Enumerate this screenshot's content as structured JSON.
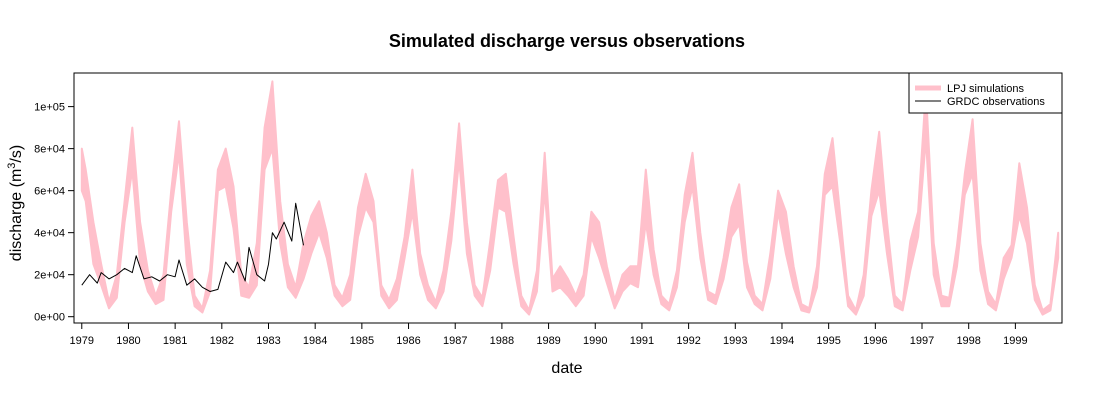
{
  "chart_data": {
    "type": "line",
    "title": "Simulated discharge versus observations",
    "xlabel": "date",
    "ylabel_main": "discharge (m",
    "ylabel_sup": "3",
    "ylabel_tail": "/s)",
    "x_axis": {
      "kind": "date",
      "range": [
        "1978-11-01",
        "1999-12-31"
      ],
      "ticks": [
        "1979",
        "1980",
        "1981",
        "1982",
        "1983",
        "1984",
        "1985",
        "1986",
        "1987",
        "1988",
        "1989",
        "1990",
        "1991",
        "1992",
        "1993",
        "1994",
        "1995",
        "1996",
        "1997",
        "1998",
        "1999"
      ]
    },
    "y_axis": {
      "range": [
        -3000,
        116000
      ],
      "ticks": [
        0,
        20000,
        40000,
        60000,
        80000,
        100000
      ],
      "tick_labels": [
        "0e+00",
        "2e+04",
        "4e+04",
        "6e+04",
        "8e+04",
        "1e+05"
      ]
    },
    "legend": {
      "placement": "top-right",
      "entries": [
        {
          "label": "LPJ simulations",
          "color": "#ffc0cb",
          "style": "thick-line"
        },
        {
          "label": "GRDC observations",
          "color": "#000000",
          "style": "thin-line"
        }
      ]
    },
    "series": [
      {
        "name": "LPJ simulations",
        "type": "band",
        "color": "#ffc0cb",
        "x": [
          "1979-01",
          "1979-02",
          "1979-04",
          "1979-06",
          "1979-08",
          "1979-10",
          "1979-12",
          "1980-02",
          "1980-04",
          "1980-06",
          "1980-08",
          "1980-10",
          "1980-12",
          "1981-02",
          "1981-04",
          "1981-06",
          "1981-08",
          "1981-10",
          "1981-12",
          "1982-02",
          "1982-04",
          "1982-06",
          "1982-08",
          "1982-10",
          "1982-12",
          "1983-02",
          "1983-04",
          "1983-06",
          "1983-08",
          "1983-10",
          "1983-12",
          "1984-02",
          "1984-04",
          "1984-06",
          "1984-08",
          "1984-10",
          "1984-12",
          "1985-02",
          "1985-04",
          "1985-06",
          "1985-08",
          "1985-10",
          "1985-12",
          "1986-02",
          "1986-04",
          "1986-06",
          "1986-08",
          "1986-10",
          "1986-12",
          "1987-02",
          "1987-04",
          "1987-06",
          "1987-08",
          "1987-10",
          "1987-12",
          "1988-02",
          "1988-04",
          "1988-06",
          "1988-08",
          "1988-10",
          "1988-12",
          "1989-02",
          "1989-04",
          "1989-06",
          "1989-08",
          "1989-10",
          "1989-12",
          "1990-02",
          "1990-04",
          "1990-06",
          "1990-08",
          "1990-10",
          "1990-12",
          "1991-02",
          "1991-04",
          "1991-06",
          "1991-08",
          "1991-10",
          "1991-12",
          "1992-02",
          "1992-04",
          "1992-06",
          "1992-08",
          "1992-10",
          "1992-12",
          "1993-02",
          "1993-04",
          "1993-06",
          "1993-08",
          "1993-10",
          "1993-12",
          "1994-02",
          "1994-04",
          "1994-06",
          "1994-08",
          "1994-10",
          "1994-12",
          "1995-02",
          "1995-04",
          "1995-06",
          "1995-08",
          "1995-10",
          "1995-12",
          "1996-02",
          "1996-04",
          "1996-06",
          "1996-08",
          "1996-10",
          "1996-12",
          "1997-02",
          "1997-04",
          "1997-06",
          "1997-08",
          "1997-10",
          "1997-12",
          "1998-02",
          "1998-04",
          "1998-06",
          "1998-08",
          "1998-10",
          "1998-12",
          "1999-02",
          "1999-04",
          "1999-06",
          "1999-08",
          "1999-10",
          "1999-12"
        ],
        "lower": [
          60000,
          55000,
          25000,
          15000,
          4000,
          9000,
          45000,
          70000,
          25000,
          12000,
          6000,
          8000,
          50000,
          78000,
          25000,
          5000,
          2000,
          12000,
          60000,
          62000,
          42000,
          10000,
          9000,
          15000,
          70000,
          80000,
          35000,
          14000,
          9000,
          18000,
          30000,
          40000,
          28000,
          10000,
          5000,
          8000,
          38000,
          52000,
          45000,
          10000,
          4000,
          8000,
          28000,
          50000,
          20000,
          8000,
          4000,
          12000,
          36000,
          75000,
          30000,
          10000,
          5000,
          22000,
          52000,
          50000,
          25000,
          5000,
          1000,
          12000,
          60000,
          12000,
          14000,
          10000,
          5000,
          10000,
          38000,
          28000,
          16000,
          4000,
          12000,
          16000,
          14000,
          45000,
          20000,
          6000,
          3000,
          14000,
          45000,
          62000,
          28000,
          8000,
          6000,
          18000,
          38000,
          44000,
          14000,
          6000,
          3000,
          18000,
          50000,
          30000,
          14000,
          3000,
          2000,
          14000,
          58000,
          62000,
          35000,
          5000,
          1000,
          10000,
          48000,
          60000,
          30000,
          5000,
          3000,
          22000,
          38000,
          85000,
          20000,
          5000,
          5000,
          24000,
          58000,
          68000,
          22000,
          6000,
          3000,
          18000,
          28000,
          48000,
          35000,
          8000,
          1000,
          3000,
          28000
        ],
        "upper": [
          80000,
          70000,
          45000,
          25000,
          7000,
          20000,
          55000,
          90000,
          45000,
          22000,
          10000,
          20000,
          60000,
          93000,
          45000,
          10000,
          4000,
          22000,
          70000,
          80000,
          62000,
          20000,
          14000,
          35000,
          90000,
          112000,
          55000,
          25000,
          14000,
          35000,
          48000,
          55000,
          40000,
          15000,
          9000,
          20000,
          52000,
          68000,
          55000,
          15000,
          8000,
          18000,
          38000,
          70000,
          30000,
          15000,
          7000,
          22000,
          50000,
          92000,
          45000,
          15000,
          9000,
          36000,
          65000,
          68000,
          38000,
          10000,
          3000,
          22000,
          78000,
          18000,
          24000,
          18000,
          10000,
          20000,
          50000,
          45000,
          24000,
          8000,
          20000,
          24000,
          24000,
          70000,
          32000,
          10000,
          6000,
          22000,
          58000,
          78000,
          40000,
          12000,
          10000,
          28000,
          52000,
          63000,
          26000,
          10000,
          6000,
          30000,
          60000,
          50000,
          24000,
          6000,
          4000,
          24000,
          68000,
          85000,
          48000,
          10000,
          3000,
          20000,
          60000,
          88000,
          45000,
          10000,
          6000,
          36000,
          50000,
          108000,
          35000,
          10000,
          9000,
          34000,
          68000,
          94000,
          35000,
          12000,
          6000,
          28000,
          34000,
          73000,
          52000,
          15000,
          3000,
          6000,
          40000
        ]
      },
      {
        "name": "GRDC observations",
        "type": "line",
        "color": "#000000",
        "x": [
          "1979-01",
          "1979-03",
          "1979-05",
          "1979-06",
          "1979-08",
          "1979-10",
          "1979-12",
          "1980-02",
          "1980-03",
          "1980-05",
          "1980-07",
          "1980-09",
          "1980-11",
          "1981-01",
          "1981-02",
          "1981-04",
          "1981-06",
          "1981-08",
          "1981-10",
          "1981-12",
          "1982-02",
          "1982-04",
          "1982-05",
          "1982-07",
          "1982-08",
          "1982-10",
          "1982-12",
          "1983-01",
          "1983-02",
          "1983-03",
          "1983-05",
          "1983-07",
          "1983-08",
          "1983-10"
        ],
        "values": [
          15000,
          20000,
          16000,
          21000,
          18000,
          20000,
          23000,
          21000,
          29000,
          18000,
          19000,
          17000,
          20000,
          19000,
          27000,
          15000,
          18000,
          14000,
          12000,
          13000,
          26000,
          21000,
          26000,
          17000,
          33000,
          20000,
          17000,
          25000,
          40000,
          37000,
          45000,
          36000,
          54000,
          34000
        ]
      }
    ]
  }
}
